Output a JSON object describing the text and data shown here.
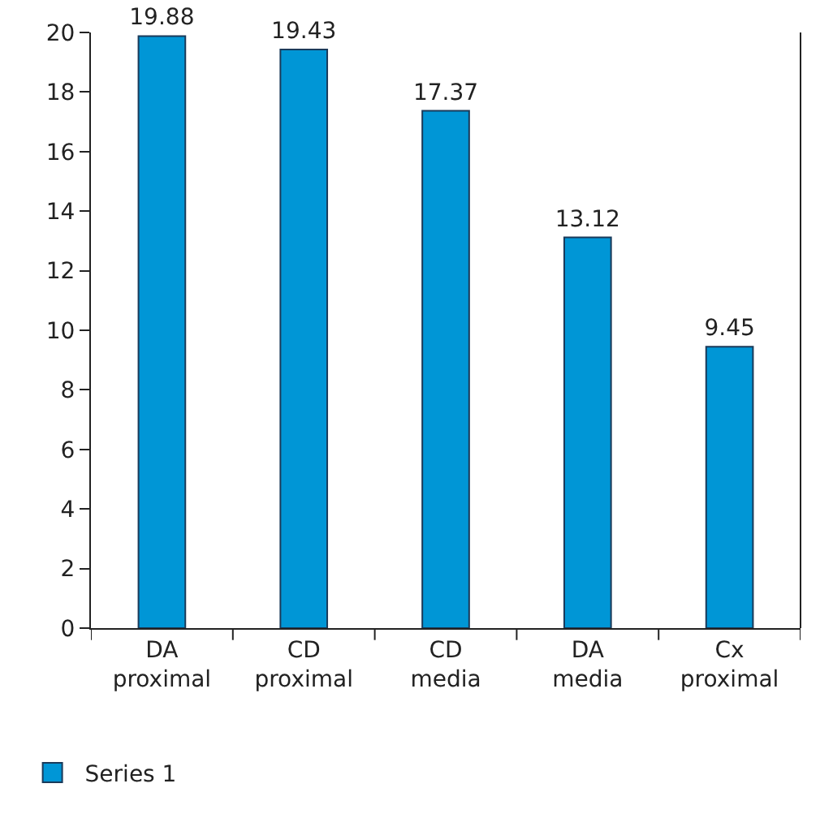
{
  "chart_data": {
    "type": "bar",
    "categories": [
      "DA proximal",
      "CD proximal",
      "CD media",
      "DA media",
      "Cx proximal"
    ],
    "series": [
      {
        "name": "Series 1",
        "color": "#0096d6",
        "values": [
          19.88,
          19.43,
          17.37,
          13.12,
          9.45
        ]
      }
    ],
    "ylim": [
      0,
      20
    ],
    "yticks": [
      0,
      2,
      4,
      6,
      8,
      10,
      12,
      14,
      16,
      18,
      20
    ],
    "grid": false,
    "data_labels": true,
    "legend": "bottom left"
  }
}
